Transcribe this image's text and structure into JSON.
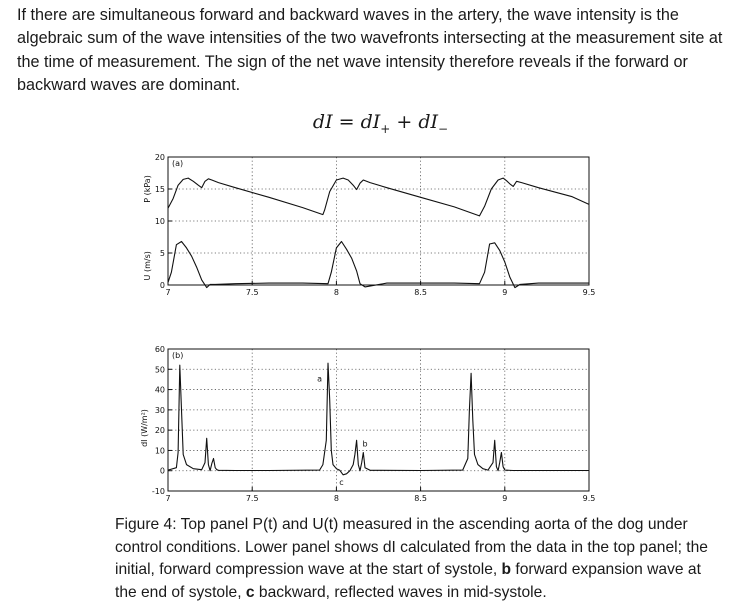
{
  "intro": "If there are simultaneous forward and backward waves in the artery, the wave intensity is the algebraic sum of the wave intensities of the two wavefronts intersecting at the measurement site at the time of measurement. The sign of the net wave intensity therefore reveals if the forward or backward waves are dominant.",
  "equation": {
    "lhs": "dI",
    "eq": "=",
    "t1": "dI",
    "s1": "+",
    "plus": "+",
    "t2": "dI",
    "s2": "−"
  },
  "caption": {
    "lead": "Figure 4: Top panel P(t) and U(t) measured in the ascending aorta of the dog under control conditions. Lower panel shows dI calculated from the data in the top panel; the initial, forward compression wave at the start of systole, ",
    "b_bold": "b",
    "b_text": " forward expansion wave at the end of systole, ",
    "c_bold": "c",
    "c_text": " backward, reflected waves in mid-systole."
  },
  "chart_data": [
    {
      "type": "line",
      "panel_label": "(a)",
      "ylabel": "P (kPa)",
      "ylabel2": "U (m/s)",
      "xlim": [
        7,
        9.5
      ],
      "ylim": [
        0,
        20
      ],
      "x_ticks": [
        "7",
        "7.5",
        "8",
        "8.5",
        "9",
        "9.5"
      ],
      "y_ticks": [
        "0",
        "5",
        "10",
        "15",
        "20"
      ],
      "grid": true,
      "series": [
        {
          "x": [
            7.0,
            7.03,
            7.06,
            7.09,
            7.12,
            7.15,
            7.18,
            7.2,
            7.22,
            7.24,
            7.26,
            7.3,
            7.4,
            7.6,
            7.8,
            7.92,
            7.93,
            7.96,
            8.0,
            8.04,
            8.07,
            8.1,
            8.12,
            8.14,
            8.16,
            8.2,
            8.3,
            8.5,
            8.7,
            8.85,
            8.88,
            8.92,
            8.96,
            8.99,
            9.01,
            9.03,
            9.05,
            9.07,
            9.1,
            9.2,
            9.4,
            9.5
          ],
          "values": [
            12.0,
            13.5,
            15.6,
            16.5,
            16.7,
            16.2,
            15.6,
            15.2,
            16.2,
            16.6,
            16.4,
            16.0,
            15.2,
            13.7,
            12.1,
            11.0,
            11.7,
            14.6,
            16.4,
            16.7,
            16.4,
            15.6,
            14.9,
            15.9,
            16.4,
            16.0,
            15.2,
            13.7,
            12.2,
            10.8,
            12.3,
            15.0,
            16.4,
            16.7,
            16.3,
            15.8,
            15.4,
            16.2,
            16.0,
            15.2,
            13.8,
            12.6
          ]
        },
        {
          "x": [
            7.0,
            7.02,
            7.05,
            7.08,
            7.11,
            7.14,
            7.17,
            7.2,
            7.23,
            7.25,
            7.28,
            7.4,
            7.6,
            7.8,
            7.95,
            7.97,
            8.0,
            8.03,
            8.06,
            8.09,
            8.12,
            8.14,
            8.17,
            8.3,
            8.5,
            8.7,
            8.85,
            8.88,
            8.91,
            8.94,
            8.97,
            9.0,
            9.03,
            9.06,
            9.09,
            9.2,
            9.4,
            9.5
          ],
          "values": [
            0.4,
            2.0,
            6.3,
            6.8,
            5.8,
            4.5,
            2.8,
            0.8,
            -0.4,
            0.1,
            0.1,
            0.2,
            0.3,
            0.3,
            0.2,
            2.0,
            5.8,
            6.8,
            5.6,
            4.2,
            2.2,
            0.2,
            -0.3,
            0.3,
            0.3,
            0.3,
            0.2,
            2.0,
            6.4,
            6.6,
            5.4,
            3.6,
            1.2,
            -0.4,
            0.1,
            0.3,
            0.3,
            0.3
          ]
        }
      ]
    },
    {
      "type": "line",
      "panel_label": "(b)",
      "ylabel": "dI (W/m²)",
      "xlim": [
        7,
        9.5
      ],
      "ylim": [
        -10,
        60
      ],
      "x_ticks": [
        "7",
        "7.5",
        "8",
        "8.5",
        "9",
        "9.5"
      ],
      "y_ticks": [
        "-10",
        "0",
        "10",
        "20",
        "30",
        "40",
        "50",
        "60"
      ],
      "grid": true,
      "annotations": [
        {
          "text": "a",
          "x": 7.9,
          "y": 44
        },
        {
          "text": "b",
          "x": 8.17,
          "y": 12
        },
        {
          "text": "c",
          "x": 8.03,
          "y": -7
        }
      ],
      "series": [
        {
          "x": [
            7.0,
            7.05,
            7.06,
            7.07,
            7.08,
            7.09,
            7.11,
            7.15,
            7.2,
            7.22,
            7.23,
            7.24,
            7.25,
            7.26,
            7.27,
            7.28,
            7.29,
            7.3,
            7.4,
            7.6,
            7.9,
            7.92,
            7.94,
            7.95,
            7.96,
            7.97,
            7.98,
            8.0,
            8.02,
            8.04,
            8.06,
            8.08,
            8.1,
            8.11,
            8.12,
            8.13,
            8.14,
            8.15,
            8.16,
            8.17,
            8.2,
            8.5,
            8.75,
            8.78,
            8.79,
            8.8,
            8.81,
            8.82,
            8.84,
            8.87,
            8.9,
            8.93,
            8.94,
            8.95,
            8.96,
            8.97,
            8.98,
            8.99,
            9.0,
            9.05,
            9.3,
            9.5
          ],
          "values": [
            0.3,
            1.5,
            9.0,
            52.0,
            30.0,
            8.0,
            3.0,
            1.0,
            0.5,
            4.0,
            16.0,
            3.0,
            0.0,
            3.5,
            6.0,
            1.5,
            0.5,
            0.2,
            0.1,
            0.1,
            0.3,
            3.0,
            15.0,
            53.0,
            35.0,
            10.0,
            3.0,
            1.0,
            0.2,
            -2.0,
            -1.5,
            0.0,
            3.0,
            8.0,
            15.0,
            3.0,
            0.0,
            4.0,
            9.0,
            1.5,
            0.2,
            0.1,
            0.3,
            6.0,
            30.0,
            48.0,
            25.0,
            8.0,
            3.0,
            1.0,
            0.3,
            4.0,
            15.0,
            2.0,
            0.0,
            4.0,
            9.0,
            2.0,
            0.3,
            0.1,
            0.1,
            0.1
          ]
        }
      ]
    }
  ]
}
